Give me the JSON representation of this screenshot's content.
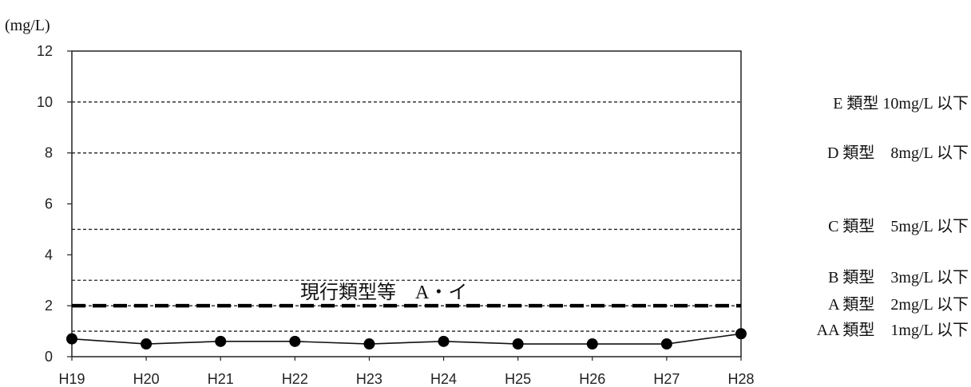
{
  "chart_data": {
    "type": "line",
    "unit_label": "(mg/L)",
    "categories": [
      "H19",
      "H20",
      "H21",
      "H22",
      "H23",
      "H24",
      "H25",
      "H26",
      "H27",
      "H28"
    ],
    "values": [
      0.7,
      0.5,
      0.6,
      0.6,
      0.5,
      0.6,
      0.5,
      0.5,
      0.5,
      0.9
    ],
    "ylim": [
      0,
      12
    ],
    "yticks": [
      "0",
      "2",
      "4",
      "6",
      "8",
      "10",
      "12"
    ],
    "reference_lines": [
      {
        "value": 10,
        "label": "E 類型  10mg/L 以下"
      },
      {
        "value": 8,
        "label": "D 類型　8mg/L 以下"
      },
      {
        "value": 5,
        "label": "C 類型　5mg/L 以下"
      },
      {
        "value": 3,
        "label": "B 類型　3mg/L 以下"
      },
      {
        "value": 2,
        "label": "A 類型　2mg/L 以下"
      },
      {
        "value": 1,
        "label": "AA 類型　1mg/L 以下"
      }
    ],
    "current_class": {
      "value": 2,
      "label": "現行類型等　A・イ"
    },
    "grid": false,
    "legend": "none"
  }
}
